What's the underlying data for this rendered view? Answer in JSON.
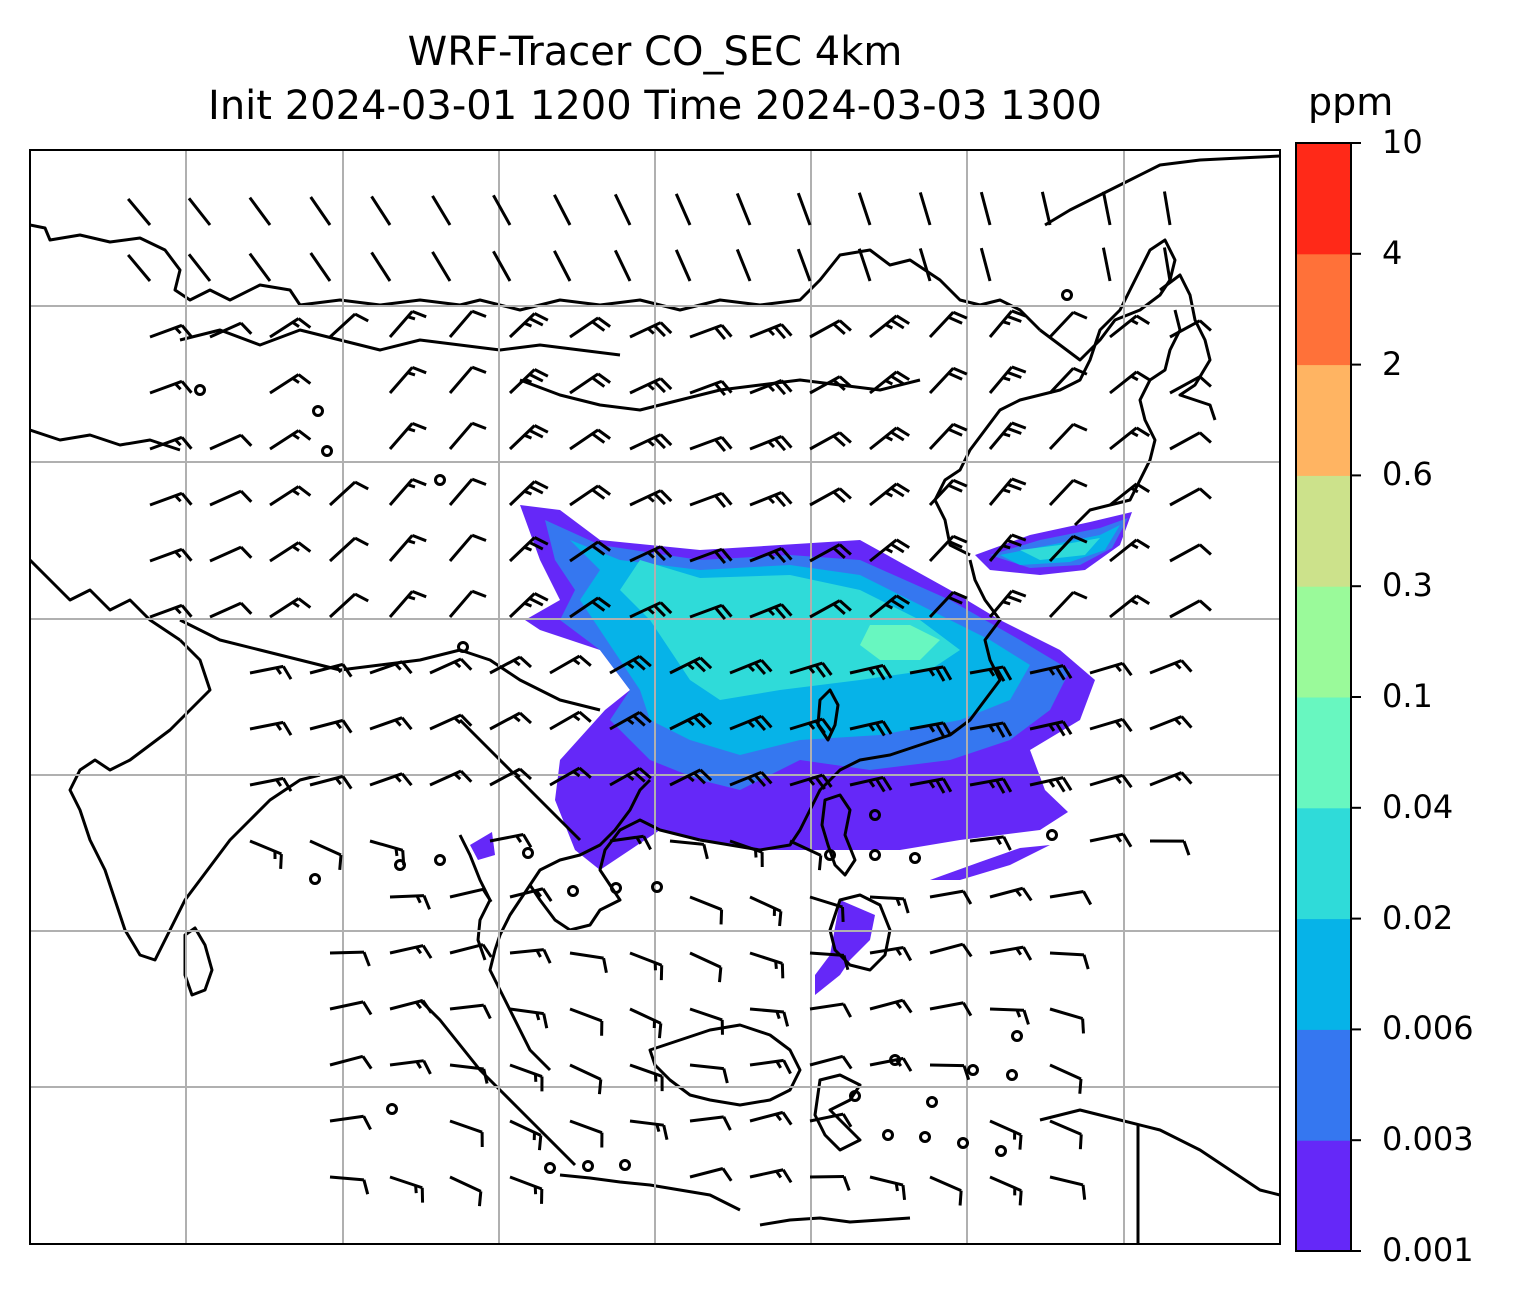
{
  "title": {
    "line1": "WRF-Tracer CO_SEC 4km",
    "line2": "Init 2024-03-01 1200 Time 2024-03-03 1300"
  },
  "colorbar": {
    "unit": "ppm",
    "ticks": [
      "0.001",
      "0.003",
      "0.006",
      "0.02",
      "0.04",
      "0.1",
      "0.3",
      "0.6",
      "2",
      "4",
      "10"
    ],
    "colors": [
      "#6528f8",
      "#3577f0",
      "#06b3e8",
      "#2fdbd9",
      "#68f7c0",
      "#9afa9a",
      "#cce28b",
      "#ffb462",
      "#ff7139",
      "#ff2918"
    ]
  },
  "map": {
    "land_line_color": "#000000",
    "gridline_color": "#b0b0b0",
    "gridlines": true,
    "wind_symbol": "wind-barb"
  }
}
